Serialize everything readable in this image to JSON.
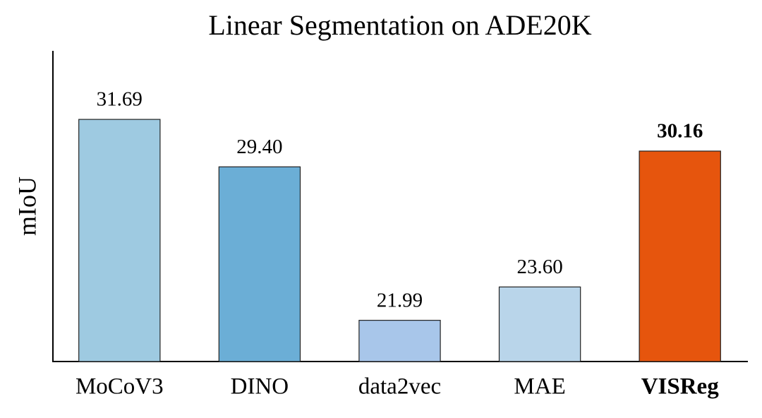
{
  "chart_data": {
    "type": "bar",
    "title": "Linear Segmentation on ADE20K",
    "y_label": "mIoU",
    "categories": [
      "MoCoV3",
      "DINO",
      "data2vec",
      "MAE",
      "VISReg"
    ],
    "values": [
      31.69,
      29.4,
      21.99,
      23.6,
      30.16
    ],
    "value_labels": [
      "31.69",
      "29.40",
      "21.99",
      "23.60",
      "30.16"
    ],
    "colors": [
      "#9ecae1",
      "#6baed6",
      "#a8c6ea",
      "#b9d5ea",
      "#e6550d"
    ],
    "ylim": [
      20,
      35
    ],
    "grid": false
  }
}
